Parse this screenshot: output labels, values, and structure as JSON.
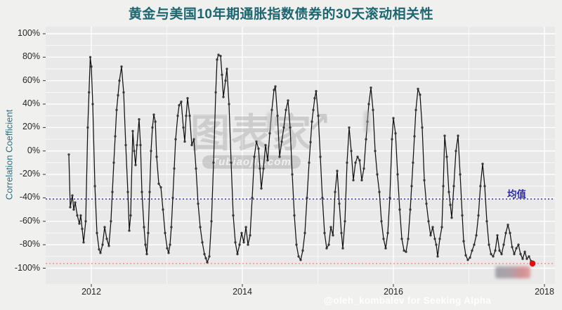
{
  "title": "黄金与美国10年期通胀指数债券的30天滚动相关性",
  "y_axis": {
    "label": "Correlation Coefficient"
  },
  "mean_line": {
    "label": "均值"
  },
  "watermark": {
    "text": "图表家",
    "arrow": "↗",
    "badge": "Tubiaojia.com"
  },
  "attribution": "@oleh_kombalev for Seeking Alpha",
  "colors": {
    "title": "#1d6670",
    "axis_label": "#2e6f80",
    "tick": "#262626",
    "page_bg": "#f0f0ef",
    "panel_bg": "#e9e9e9",
    "grid": "#ffffff",
    "line": "#111111",
    "marker": "#2f2f2f",
    "mean_line": "#3737cf",
    "mean_label": "#2b2bb0",
    "min_line": "#ef9a9a",
    "end_dot": "#e01010",
    "watermark": "#7d7d7d",
    "attribution": "#ffffff"
  },
  "chart_data": {
    "type": "line",
    "title": "黄金与美国10年期通胀指数债券的30天滚动相关性",
    "xlabel": "",
    "ylabel": "Correlation Coefficient",
    "ylim": [
      -100,
      100
    ],
    "y_tick_step_pct": 20,
    "y_minor_step_pct": 10,
    "x_ticks": [
      2012,
      2014,
      2016,
      2018
    ],
    "x_minor_ticks": [
      2013,
      2015,
      2017
    ],
    "x_range": [
      2011.4,
      2018.14
    ],
    "grid": "on",
    "mean_pct": -41,
    "min_line_pct": -96,
    "last_point": {
      "x": 2017.842,
      "y": -96
    },
    "series": [
      {
        "name": "黄金与美国10年期通胀指数债券的30天滚动相关性",
        "points": [
          [
            2011.702,
            -3
          ],
          [
            2011.721,
            -48
          ],
          [
            2011.749,
            -38
          ],
          [
            2011.767,
            -50
          ],
          [
            2011.786,
            -44
          ],
          [
            2011.814,
            -55
          ],
          [
            2011.842,
            -62
          ],
          [
            2011.86,
            -55
          ],
          [
            2011.898,
            -78
          ],
          [
            2011.926,
            -60
          ],
          [
            2011.953,
            20
          ],
          [
            2011.986,
            80
          ],
          [
            2012,
            72
          ],
          [
            2012.019,
            40
          ],
          [
            2012.047,
            -30
          ],
          [
            2012.074,
            -70
          ],
          [
            2012.102,
            -84
          ],
          [
            2012.121,
            -87
          ],
          [
            2012.149,
            -80
          ],
          [
            2012.177,
            -65
          ],
          [
            2012.205,
            -75
          ],
          [
            2012.233,
            -81
          ],
          [
            2012.26,
            -60
          ],
          [
            2012.298,
            -10
          ],
          [
            2012.335,
            35
          ],
          [
            2012.372,
            60
          ],
          [
            2012.4,
            72
          ],
          [
            2012.428,
            50
          ],
          [
            2012.456,
            5
          ],
          [
            2012.484,
            -35
          ],
          [
            2012.502,
            -68
          ],
          [
            2012.521,
            -55
          ],
          [
            2012.549,
            17
          ],
          [
            2012.567,
            0
          ],
          [
            2012.586,
            -12
          ],
          [
            2012.605,
            5
          ],
          [
            2012.633,
            27
          ],
          [
            2012.651,
            5
          ],
          [
            2012.67,
            -35
          ],
          [
            2012.698,
            -65
          ],
          [
            2012.716,
            -80
          ],
          [
            2012.735,
            -88
          ],
          [
            2012.753,
            -70
          ],
          [
            2012.772,
            -35
          ],
          [
            2012.791,
            0
          ],
          [
            2012.809,
            20
          ],
          [
            2012.828,
            31
          ],
          [
            2012.847,
            25
          ],
          [
            2012.865,
            -5
          ],
          [
            2012.893,
            -28
          ],
          [
            2012.921,
            -31
          ],
          [
            2012.949,
            -50
          ],
          [
            2012.977,
            -70
          ],
          [
            2013.005,
            -83
          ],
          [
            2013.023,
            -87
          ],
          [
            2013.042,
            -80
          ],
          [
            2013.06,
            -65
          ],
          [
            2013.079,
            -40
          ],
          [
            2013.098,
            -15
          ],
          [
            2013.116,
            10
          ],
          [
            2013.144,
            30
          ],
          [
            2013.163,
            39
          ],
          [
            2013.191,
            42
          ],
          [
            2013.219,
            20
          ],
          [
            2013.237,
            8
          ],
          [
            2013.256,
            30
          ],
          [
            2013.274,
            45
          ],
          [
            2013.302,
            30
          ],
          [
            2013.33,
            5
          ],
          [
            2013.358,
            10
          ],
          [
            2013.386,
            -15
          ],
          [
            2013.414,
            -45
          ],
          [
            2013.442,
            -65
          ],
          [
            2013.47,
            -78
          ],
          [
            2013.498,
            -88
          ],
          [
            2013.535,
            -95
          ],
          [
            2013.563,
            -90
          ],
          [
            2013.591,
            -60
          ],
          [
            2013.619,
            -10
          ],
          [
            2013.647,
            50
          ],
          [
            2013.665,
            78
          ],
          [
            2013.684,
            82
          ],
          [
            2013.712,
            81
          ],
          [
            2013.73,
            65
          ],
          [
            2013.749,
            46
          ],
          [
            2013.777,
            60
          ],
          [
            2013.795,
            70
          ],
          [
            2013.823,
            40
          ],
          [
            2013.851,
            -10
          ],
          [
            2013.879,
            -55
          ],
          [
            2013.907,
            -78
          ],
          [
            2013.935,
            -88
          ],
          [
            2013.963,
            -80
          ],
          [
            2013.991,
            -70
          ],
          [
            2014.019,
            -78
          ],
          [
            2014.047,
            -65
          ],
          [
            2014.074,
            -80
          ],
          [
            2014.102,
            -72
          ],
          [
            2014.13,
            -40
          ],
          [
            2014.158,
            -5
          ],
          [
            2014.186,
            8
          ],
          [
            2014.214,
            2
          ],
          [
            2014.251,
            -32
          ],
          [
            2014.279,
            -15
          ],
          [
            2014.307,
            5
          ],
          [
            2014.335,
            -8
          ],
          [
            2014.363,
            15
          ],
          [
            2014.391,
            35
          ],
          [
            2014.419,
            52
          ],
          [
            2014.437,
            55
          ],
          [
            2014.465,
            30
          ],
          [
            2014.493,
            -5
          ],
          [
            2014.521,
            8
          ],
          [
            2014.549,
            20
          ],
          [
            2014.577,
            35
          ],
          [
            2014.605,
            43
          ],
          [
            2014.633,
            20
          ],
          [
            2014.66,
            -20
          ],
          [
            2014.688,
            -55
          ],
          [
            2014.716,
            -80
          ],
          [
            2014.744,
            -90
          ],
          [
            2014.772,
            -93
          ],
          [
            2014.8,
            -85
          ],
          [
            2014.828,
            -70
          ],
          [
            2014.856,
            -40
          ],
          [
            2014.884,
            -10
          ],
          [
            2014.921,
            25
          ],
          [
            2014.958,
            45
          ],
          [
            2014.977,
            51
          ],
          [
            2015.005,
            30
          ],
          [
            2015.033,
            -5
          ],
          [
            2015.06,
            -40
          ],
          [
            2015.088,
            -70
          ],
          [
            2015.116,
            -83
          ],
          [
            2015.144,
            -80
          ],
          [
            2015.172,
            -65
          ],
          [
            2015.2,
            -72
          ],
          [
            2015.228,
            -35
          ],
          [
            2015.256,
            -17
          ],
          [
            2015.284,
            -45
          ],
          [
            2015.312,
            -70
          ],
          [
            2015.33,
            -83
          ],
          [
            2015.358,
            -60
          ],
          [
            2015.386,
            -10
          ],
          [
            2015.414,
            20
          ],
          [
            2015.442,
            0
          ],
          [
            2015.47,
            -25
          ],
          [
            2015.498,
            -10
          ],
          [
            2015.526,
            -5
          ],
          [
            2015.553,
            -8
          ],
          [
            2015.581,
            -25
          ],
          [
            2015.609,
            -15
          ],
          [
            2015.637,
            10
          ],
          [
            2015.674,
            40
          ],
          [
            2015.702,
            54
          ],
          [
            2015.73,
            35
          ],
          [
            2015.758,
            0
          ],
          [
            2015.786,
            -20
          ],
          [
            2015.814,
            -35
          ],
          [
            2015.842,
            -60
          ],
          [
            2015.87,
            -75
          ],
          [
            2015.898,
            -83
          ],
          [
            2015.926,
            -70
          ],
          [
            2015.953,
            -40
          ],
          [
            2015.981,
            10
          ],
          [
            2016,
            28
          ],
          [
            2016.028,
            15
          ],
          [
            2016.056,
            -20
          ],
          [
            2016.084,
            -50
          ],
          [
            2016.112,
            -75
          ],
          [
            2016.14,
            -85
          ],
          [
            2016.167,
            -86
          ],
          [
            2016.195,
            -75
          ],
          [
            2016.223,
            -50
          ],
          [
            2016.26,
            -10
          ],
          [
            2016.298,
            35
          ],
          [
            2016.326,
            53
          ],
          [
            2016.353,
            48
          ],
          [
            2016.381,
            20
          ],
          [
            2016.409,
            -25
          ],
          [
            2016.437,
            -45
          ],
          [
            2016.465,
            -60
          ],
          [
            2016.493,
            -72
          ],
          [
            2016.521,
            -65
          ],
          [
            2016.549,
            -75
          ],
          [
            2016.567,
            -80
          ],
          [
            2016.586,
            -90
          ],
          [
            2016.614,
            -75
          ],
          [
            2016.642,
            -65
          ],
          [
            2016.66,
            -30
          ],
          [
            2016.679,
            13
          ],
          [
            2016.707,
            -5
          ],
          [
            2016.735,
            -35
          ],
          [
            2016.772,
            -57
          ],
          [
            2016.8,
            -30
          ],
          [
            2016.828,
            0
          ],
          [
            2016.856,
            13
          ],
          [
            2016.884,
            -20
          ],
          [
            2016.912,
            -55
          ],
          [
            2016.93,
            -77
          ],
          [
            2016.958,
            -89
          ],
          [
            2016.986,
            -93
          ],
          [
            2017.014,
            -91
          ],
          [
            2017.042,
            -85
          ],
          [
            2017.07,
            -80
          ],
          [
            2017.098,
            -72
          ],
          [
            2017.126,
            -55
          ],
          [
            2017.153,
            -30
          ],
          [
            2017.181,
            -11
          ],
          [
            2017.209,
            -30
          ],
          [
            2017.237,
            -60
          ],
          [
            2017.265,
            -80
          ],
          [
            2017.293,
            -88
          ],
          [
            2017.321,
            -90
          ],
          [
            2017.349,
            -85
          ],
          [
            2017.377,
            -72
          ],
          [
            2017.405,
            -85
          ],
          [
            2017.433,
            -88
          ],
          [
            2017.46,
            -80
          ],
          [
            2017.488,
            -70
          ],
          [
            2017.516,
            -63
          ],
          [
            2017.544,
            -70
          ],
          [
            2017.572,
            -82
          ],
          [
            2017.6,
            -88
          ],
          [
            2017.628,
            -83
          ],
          [
            2017.656,
            -80
          ],
          [
            2017.684,
            -88
          ],
          [
            2017.712,
            -92
          ],
          [
            2017.74,
            -86
          ],
          [
            2017.767,
            -92
          ],
          [
            2017.795,
            -90
          ],
          [
            2017.823,
            -94
          ],
          [
            2017.842,
            -96
          ]
        ]
      }
    ]
  }
}
